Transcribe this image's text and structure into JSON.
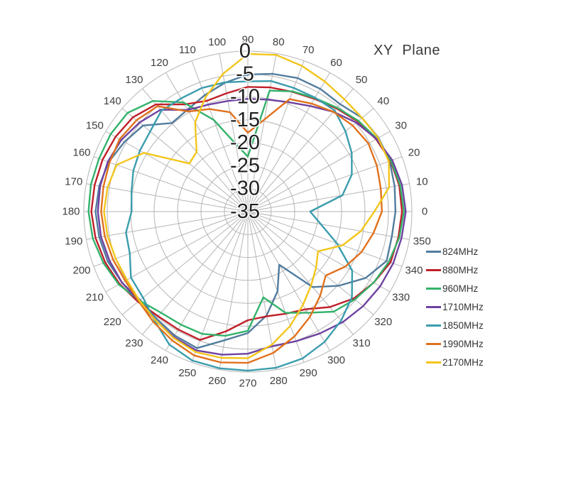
{
  "title": "XY Plane",
  "chart_data": {
    "type": "radar",
    "title": "XY Plane",
    "angle_unit": "degrees",
    "angles_deg": [
      0,
      10,
      20,
      30,
      40,
      50,
      60,
      70,
      80,
      90,
      100,
      110,
      120,
      130,
      140,
      150,
      160,
      170,
      180,
      190,
      200,
      210,
      220,
      230,
      240,
      250,
      260,
      270,
      280,
      290,
      300,
      310,
      320,
      330,
      340,
      350
    ],
    "radial_axis": {
      "min": -35,
      "max": 0,
      "tick_step": 5,
      "ticks": [
        0,
        -5,
        -10,
        -15,
        -20,
        -25,
        -30,
        -35
      ],
      "tick_labels": [
        "0",
        "-5",
        "-10",
        "-15",
        "-20",
        "-25",
        "-30",
        "-35"
      ]
    },
    "grid": {
      "spoke_step_deg": 10,
      "ring_step_db": 5,
      "color": "#b5b5b5"
    },
    "legend_position": "right",
    "series": [
      {
        "name": "824MHz",
        "color": "#527C9E",
        "values": [
          -3.5,
          -3.2,
          -2.8,
          -2.8,
          -3.2,
          -4.4,
          -4.1,
          -4.0,
          -4.5,
          -5.1,
          -6.5,
          -8.0,
          -9.3,
          -9.8,
          -5.8,
          -4.6,
          -3.4,
          -2.8,
          -2.5,
          -2.8,
          -3.2,
          -4.0,
          -5.0,
          -4.6,
          -3.8,
          -3.3,
          -6.5,
          -8.5,
          -12.0,
          -16.5,
          -21.6,
          -13.5,
          -9.8,
          -6.0,
          -3.5,
          -3.8
        ]
      },
      {
        "name": "880MHz",
        "color": "#C0202A",
        "values": [
          -2.1,
          -2.2,
          -2.6,
          -3.4,
          -4.4,
          -5.6,
          -6.6,
          -7.2,
          -7.5,
          -7.8,
          -8.8,
          -9.3,
          -8.0,
          -4.5,
          -3.0,
          -2.4,
          -2.0,
          -1.8,
          -1.6,
          -2.0,
          -2.6,
          -3.4,
          -4.4,
          -5.2,
          -5.3,
          -5.2,
          -8.5,
          -11.3,
          -11.8,
          -11.3,
          -10.4,
          -7.8,
          -5.5,
          -4.0,
          -2.6,
          -2.4
        ]
      },
      {
        "name": "960MHz",
        "color": "#33B26B",
        "values": [
          -1.7,
          -2.0,
          -2.5,
          -3.2,
          -4.2,
          -5.4,
          -6.4,
          -7.1,
          -8.2,
          -23.0,
          -20.0,
          -13.7,
          -7.5,
          -3.5,
          -1.5,
          -1.2,
          -1.2,
          -1.0,
          -1.0,
          -1.4,
          -2.2,
          -3.2,
          -4.8,
          -6.2,
          -6.5,
          -6.6,
          -7.5,
          -9.0,
          -16.0,
          -11.5,
          -9.5,
          -6.5,
          -5.2,
          -4.0,
          -3.0,
          -2.2
        ]
      },
      {
        "name": "1710MHz",
        "color": "#6E42A0",
        "values": [
          -1.3,
          -1.6,
          -2.2,
          -3.3,
          -4.8,
          -6.6,
          -8.4,
          -9.6,
          -10.2,
          -10.4,
          -10.5,
          -10.2,
          -9.4,
          -6.0,
          -4.8,
          -3.8,
          -3.2,
          -3.0,
          -3.0,
          -3.2,
          -3.6,
          -4.0,
          -4.6,
          -4.2,
          -3.4,
          -2.8,
          -3.3,
          -4.0,
          -5.2,
          -4.9,
          -4.3,
          -3.5,
          -2.9,
          -2.4,
          -2.0,
          -1.7
        ]
      },
      {
        "name": "1850MHz",
        "color": "#3B9DAD",
        "values": [
          -21.7,
          -14.5,
          -11.4,
          -9.4,
          -7.8,
          -6.2,
          -6.3,
          -6.3,
          -6.1,
          -6.6,
          -6.4,
          -6.3,
          -6.5,
          -6.3,
          -7.8,
          -8.4,
          -9.0,
          -9.8,
          -10.2,
          -8.6,
          -8.2,
          -6.2,
          -5.8,
          -4.0,
          -1.5,
          -0.4,
          -0.3,
          -0.3,
          -0.4,
          -0.9,
          -2.2,
          -4.0,
          -6.0,
          -9.3,
          -14.8,
          -19.2
        ]
      },
      {
        "name": "1990MHz",
        "color": "#E1711D",
        "values": [
          -6.4,
          -6.2,
          -5.7,
          -5.3,
          -5.8,
          -6.6,
          -7.8,
          -8.9,
          -14.6,
          -17.8,
          -13.0,
          -11.2,
          -9.8,
          -5.0,
          -4.0,
          -3.4,
          -3.6,
          -3.7,
          -3.7,
          -4.0,
          -4.4,
          -4.8,
          -4.6,
          -3.6,
          -2.6,
          -1.6,
          -1.6,
          -2.0,
          -3.7,
          -6.0,
          -8.5,
          -11.0,
          -13.3,
          -11.0,
          -9.2,
          -7.8
        ]
      },
      {
        "name": "2170MHz",
        "color": "#F3C51B",
        "values": [
          -8.0,
          -4.4,
          -3.0,
          -2.9,
          -3.2,
          -3.0,
          -2.2,
          -1.2,
          -0.3,
          -0.6,
          -4.5,
          -8.5,
          -12.5,
          -18.0,
          -18.7,
          -9.4,
          -5.2,
          -4.6,
          -4.3,
          -4.6,
          -5.0,
          -5.2,
          -4.8,
          -4.2,
          -3.2,
          -2.4,
          -2.6,
          -3.0,
          -5.5,
          -8.5,
          -11.5,
          -14.0,
          -16.0,
          -17.7,
          -13.5,
          -10.5
        ]
      }
    ]
  },
  "layout_labels": {
    "angle_label_color": "#3f3f3f",
    "radial_label_color": "#1f1f1f",
    "title_color": "#3a3a3a"
  }
}
